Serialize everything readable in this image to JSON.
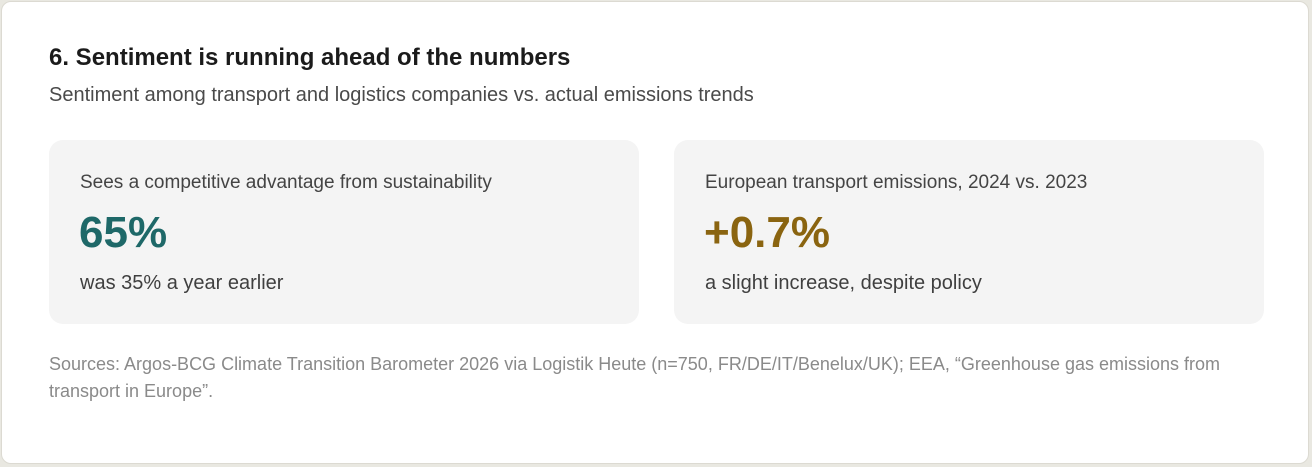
{
  "header": {
    "title": "6. Sentiment is running ahead of the numbers",
    "subtitle": "Sentiment among transport and logistics companies vs. actual emissions trends"
  },
  "cards": [
    {
      "label": "Sees a competitive advantage from sustainability",
      "value": "65%",
      "note": "was 35% a year earlier",
      "value_color": "#1e6868"
    },
    {
      "label": "European transport emissions, 2024 vs. 2023",
      "value": "+0.7%",
      "note": "a slight increase, despite policy",
      "value_color": "#8a6410"
    }
  ],
  "footer": {
    "sources": "Sources: Argos-BCG Climate Transition Barometer 2026 via Logistik Heute (n=750, FR/DE/IT/Benelux/UK); EEA, “Greenhouse gas emissions from transport in Europe”."
  }
}
